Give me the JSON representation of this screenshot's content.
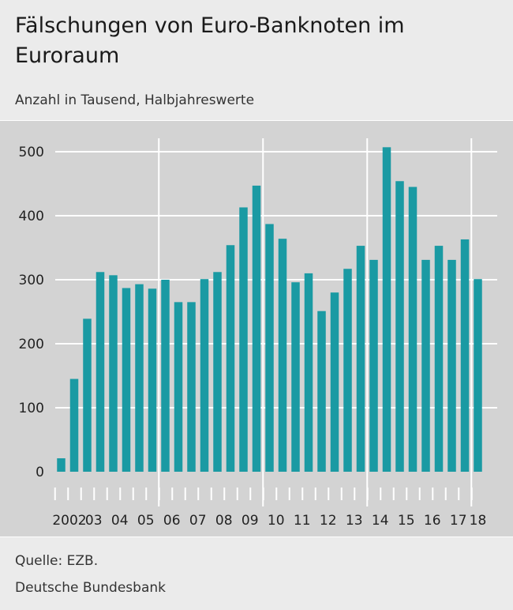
{
  "header": {
    "title": "Fälschungen von Euro-Banknoten im Euroraum",
    "subtitle": "Anzahl in Tausend, Halbjahreswerte"
  },
  "footer": {
    "source": "Quelle: EZB.",
    "author": "Deutsche Bundesbank"
  },
  "colors": {
    "bar": "#1a9aa3",
    "panel": "#d3d3d3",
    "grid": "#ffffff",
    "text": "#222222"
  },
  "chart_data": {
    "type": "bar",
    "title": "Fälschungen von Euro-Banknoten im Euroraum",
    "subtitle": "Anzahl in Tausend, Halbjahreswerte",
    "xlabel": "",
    "ylabel": "",
    "ylim": [
      0,
      520
    ],
    "yticks": [
      0,
      100,
      200,
      300,
      400,
      500
    ],
    "grid": true,
    "legend": "none",
    "year_labels": [
      "2002",
      "03",
      "04",
      "05",
      "06",
      "07",
      "08",
      "09",
      "10",
      "11",
      "12",
      "13",
      "14",
      "15",
      "16",
      "17",
      "18"
    ],
    "separator_years": [
      "06",
      "10",
      "14",
      "18"
    ],
    "series": [
      {
        "values": [
          21,
          145,
          239,
          312,
          307,
          287,
          293,
          286,
          300,
          265,
          265,
          301,
          312,
          354,
          413,
          447,
          387,
          364,
          296,
          310,
          251,
          280,
          317,
          353,
          331,
          507,
          454,
          445,
          331,
          353,
          331,
          363,
          301
        ]
      }
    ]
  }
}
